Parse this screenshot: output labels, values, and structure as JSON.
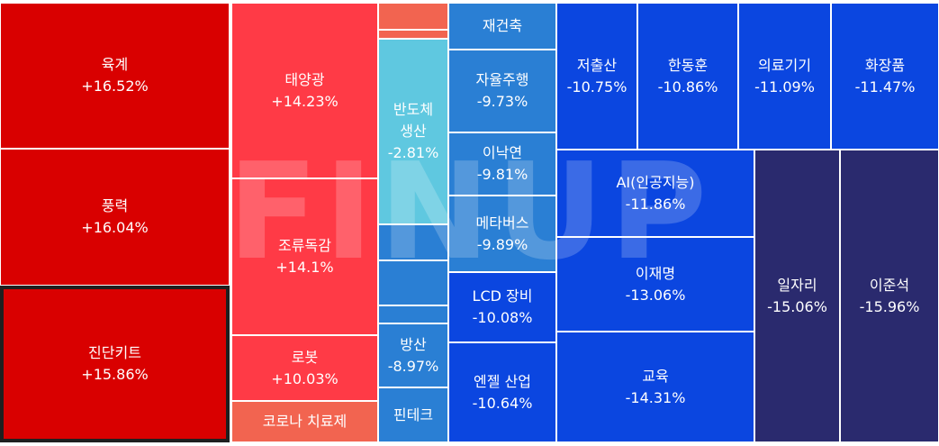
{
  "colors": {
    "strong_up": "#d90000",
    "up": "#ff3a46",
    "light_up": "#f26450",
    "semi_down": "#5fc8e0",
    "mild_down": "#2a7fd4",
    "down": "#0b46e0",
    "strong_down": "#2a2a6e"
  },
  "watermark": "FINUP",
  "tiles": [
    {
      "id": "yukgye",
      "name": "육계",
      "change": "+16.52%",
      "color": "#d90000"
    },
    {
      "id": "pungryeok",
      "name": "풍력",
      "change": "+16.04%",
      "color": "#d90000"
    },
    {
      "id": "jindan",
      "name": "진단키트",
      "change": "+15.86%",
      "color": "#d90000",
      "selected": true
    },
    {
      "id": "taeyanggwang",
      "name": "태양광",
      "change": "+14.23%",
      "color": "#ff3a46"
    },
    {
      "id": "joryu",
      "name": "조류독감",
      "change": "+14.1%",
      "color": "#ff3a46"
    },
    {
      "id": "robot",
      "name": "로봇",
      "change": "+10.03%",
      "color": "#ff3a46"
    },
    {
      "id": "corona",
      "name": "코로나 치료제",
      "change": "",
      "color": "#f26450"
    },
    {
      "id": "small_orange1",
      "name": "",
      "change": "",
      "color": "#f26450"
    },
    {
      "id": "small_orange2",
      "name": "",
      "change": "",
      "color": "#f26450"
    },
    {
      "id": "bandoche",
      "name": "반도체\n생산",
      "change": "-2.81%",
      "color": "#5fc8e0"
    },
    {
      "id": "small_blue1",
      "name": "",
      "change": "",
      "color": "#2a7fd4"
    },
    {
      "id": "small_blue2",
      "name": "",
      "change": "",
      "color": "#2a7fd4"
    },
    {
      "id": "small_blue3",
      "name": "",
      "change": "",
      "color": "#2a7fd4"
    },
    {
      "id": "small_blue4",
      "name": "",
      "change": "",
      "color": "#2a7fd4"
    },
    {
      "id": "bangsan",
      "name": "방산",
      "change": "-8.97%",
      "color": "#2a7fd4"
    },
    {
      "id": "fintech",
      "name": "핀테크",
      "change": "",
      "color": "#2a7fd4"
    },
    {
      "id": "jaegeonchuk",
      "name": "재건축",
      "change": "",
      "color": "#2a7fd4"
    },
    {
      "id": "jayul",
      "name": "자율주행",
      "change": "-9.73%",
      "color": "#2a7fd4"
    },
    {
      "id": "inakyeon",
      "name": "이낙연",
      "change": "-9.81%",
      "color": "#2a7fd4"
    },
    {
      "id": "metaverse",
      "name": "메타버스",
      "change": "-9.89%",
      "color": "#2a7fd4"
    },
    {
      "id": "lcd",
      "name": "LCD 장비",
      "change": "-10.08%",
      "color": "#0b46e0"
    },
    {
      "id": "enzel",
      "name": "엔젤 산업",
      "change": "-10.64%",
      "color": "#0b46e0"
    },
    {
      "id": "jeochulsan",
      "name": "저출산",
      "change": "-10.75%",
      "color": "#0b46e0"
    },
    {
      "id": "handonghun",
      "name": "한동훈",
      "change": "-10.86%",
      "color": "#0b46e0"
    },
    {
      "id": "uiryo",
      "name": "의료기기",
      "change": "-11.09%",
      "color": "#0b46e0"
    },
    {
      "id": "hwajang",
      "name": "화장품",
      "change": "-11.47%",
      "color": "#0b46e0"
    },
    {
      "id": "ai",
      "name": "AI(인공지능)",
      "change": "-11.86%",
      "color": "#0b46e0"
    },
    {
      "id": "ijaemyeong",
      "name": "이재명",
      "change": "-13.06%",
      "color": "#0b46e0"
    },
    {
      "id": "gyoyuk",
      "name": "교육",
      "change": "-14.31%",
      "color": "#0b46e0"
    },
    {
      "id": "iljari",
      "name": "일자리",
      "change": "-15.06%",
      "color": "#2a2a6e"
    },
    {
      "id": "ijunseok",
      "name": "이준석",
      "change": "-15.96%",
      "color": "#2a2a6e"
    }
  ]
}
